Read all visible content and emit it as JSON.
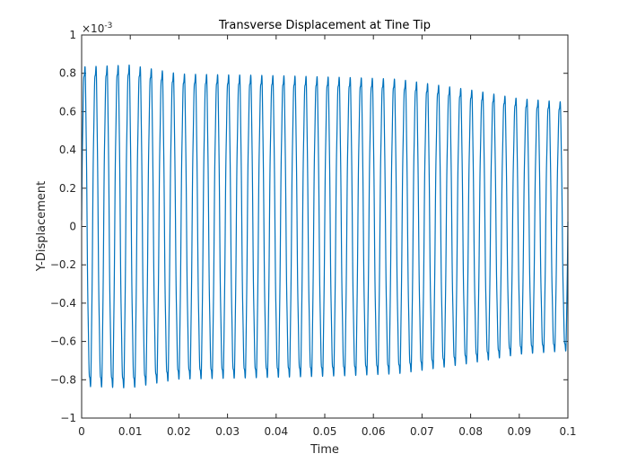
{
  "chart_data": {
    "type": "line",
    "title": "Transverse Displacement at Tine Tip",
    "xlabel": "Time",
    "ylabel": "Y-Displacement",
    "y_exponent_label": "×10",
    "y_exponent_power": "-3",
    "xlim": [
      0,
      0.1
    ],
    "ylim": [
      -1,
      1
    ],
    "xticks": [
      "0",
      "0.01",
      "0.02",
      "0.03",
      "0.04",
      "0.05",
      "0.06",
      "0.07",
      "0.08",
      "0.09",
      "0.1"
    ],
    "yticks": [
      "-1",
      "-0.8",
      "-0.6",
      "-0.4",
      "-0.2",
      "0",
      "0.2",
      "0.4",
      "0.6",
      "0.8",
      "1"
    ],
    "grid": false,
    "legend": "none",
    "series": [
      {
        "color": "#0072bd",
        "signal": {
          "form": "sinusoid",
          "frequency": 440,
          "t_start": 0,
          "t_end": 0.1,
          "amplitude_envelope": [
            [
              0.0,
              0.9
            ],
            [
              0.01,
              0.91
            ],
            [
              0.02,
              0.86
            ],
            [
              0.04,
              0.85
            ],
            [
              0.055,
              0.84
            ],
            [
              0.065,
              0.83
            ],
            [
              0.08,
              0.77
            ],
            [
              0.09,
              0.72
            ],
            [
              0.1,
              0.7
            ]
          ]
        }
      }
    ]
  }
}
